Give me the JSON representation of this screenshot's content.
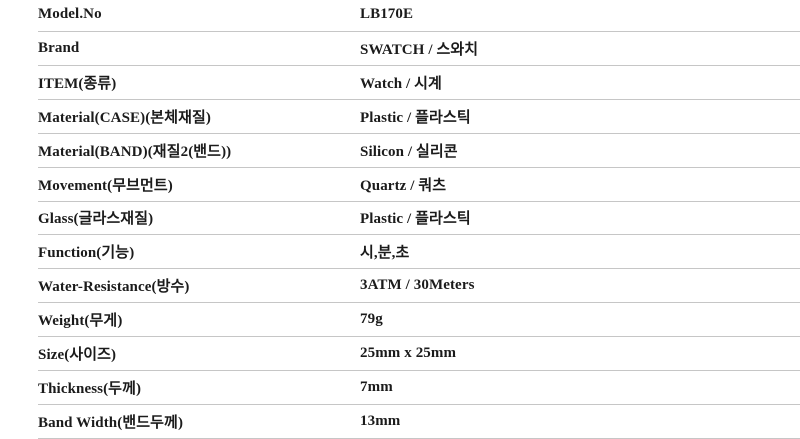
{
  "spec_table": {
    "rows": [
      {
        "label": "Model.No",
        "value": "LB170E"
      },
      {
        "label": "Brand",
        "value": "SWATCH / 스와치"
      },
      {
        "label": "ITEM(종류)",
        "value": "Watch / 시계"
      },
      {
        "label": "Material(CASE)(본체재질)",
        "value": "Plastic / 플라스틱"
      },
      {
        "label": "Material(BAND)(재질2(밴드))",
        "value": "Silicon / 실리콘"
      },
      {
        "label": "Movement(무브먼트)",
        "value": "Quartz / 쿼츠"
      },
      {
        "label": "Glass(글라스재질)",
        "value": "Plastic / 플라스틱"
      },
      {
        "label": "Function(기능)",
        "value": "시,분,초"
      },
      {
        "label": "Water-Resistance(방수)",
        "value": "3ATM / 30Meters"
      },
      {
        "label": "Weight(무게)",
        "value": "79g"
      },
      {
        "label": "Size(사이즈)",
        "value": "25mm x 25mm"
      },
      {
        "label": "Thickness(두께)",
        "value": "7mm"
      },
      {
        "label": "Band Width(밴드두께)",
        "value": "13mm"
      }
    ],
    "colors": {
      "row_divider": "#c6c6c6",
      "text": "#1b1b1b",
      "background": "#ffffff"
    }
  }
}
